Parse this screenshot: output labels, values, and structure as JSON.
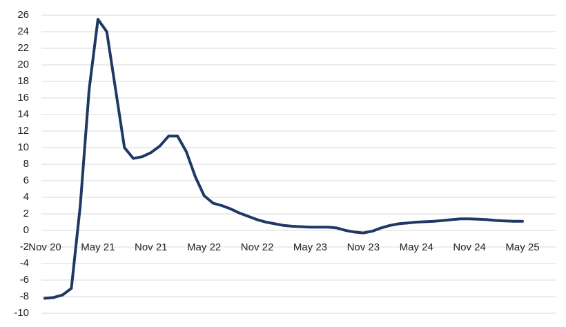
{
  "chart_data": {
    "type": "line",
    "categories": [
      "Nov 20",
      null,
      null,
      null,
      null,
      null,
      "May 21",
      null,
      null,
      null,
      null,
      null,
      "Nov 21",
      null,
      null,
      null,
      null,
      null,
      "May 22",
      null,
      null,
      null,
      null,
      null,
      "Nov 22",
      null,
      null,
      null,
      null,
      null,
      "May 23",
      null,
      null,
      null,
      null,
      null,
      "Nov 23",
      null,
      null,
      null,
      null,
      null,
      "May 24",
      null,
      null,
      null,
      null,
      null,
      "Nov 24",
      null,
      null,
      null,
      null,
      null,
      "May 25"
    ],
    "series": [
      {
        "color": "#1f3864",
        "values": [
          -8.2,
          -8.1,
          -7.8,
          -7,
          3,
          17,
          25.5,
          24,
          17,
          10,
          8.7,
          8.9,
          9.4,
          10.2,
          11.4,
          11.4,
          9.5,
          6.5,
          4.2,
          3.3,
          3.0,
          2.6,
          2.1,
          1.7,
          1.3,
          1.0,
          0.8,
          0.6,
          0.5,
          0.45,
          0.4,
          0.4,
          0.4,
          0.3,
          0.0,
          -0.2,
          -0.3,
          -0.1,
          0.3,
          0.6,
          0.8,
          0.9,
          1.0,
          1.05,
          1.1,
          1.2,
          1.3,
          1.4,
          1.4,
          1.35,
          1.3,
          1.2,
          1.15,
          1.1,
          1.1
        ]
      }
    ],
    "ylim": [
      -10,
      26
    ],
    "yticks": [
      -10,
      -8,
      -6,
      -4,
      -2,
      0,
      2,
      4,
      6,
      8,
      10,
      12,
      14,
      16,
      18,
      20,
      22,
      24,
      26
    ],
    "grid": true
  }
}
